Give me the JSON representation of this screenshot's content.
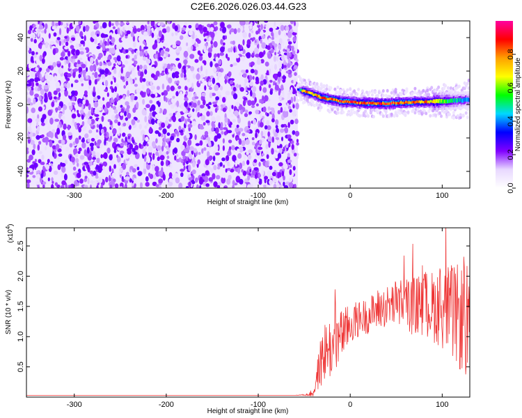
{
  "figure_title": "C2E6.2026.026.03.44.G23",
  "chart_data": [
    {
      "type": "heatmap",
      "title": "C2E6.2026.026.03.44.G23",
      "xlabel": "Height of straight line (km)",
      "ylabel": "Frequency (Hz)",
      "xlim": [
        -352,
        130
      ],
      "ylim": [
        -50,
        50
      ],
      "x_ticks": [
        "-300",
        "-200",
        "-100",
        "0",
        "100"
      ],
      "y_ticks": [
        "-40",
        "-20",
        "0",
        "20",
        "40"
      ],
      "noise_region_x": [
        -352,
        -57
      ],
      "signal_track": {
        "x": [
          -57,
          -50,
          -40,
          -30,
          -20,
          -10,
          0,
          10,
          20,
          30,
          40,
          50,
          60,
          70,
          80,
          90,
          100,
          110,
          120,
          130
        ],
        "frequency": [
          9,
          8,
          6,
          4,
          3,
          2,
          1.5,
          1,
          0.8,
          0.6,
          0.6,
          1,
          1.2,
          1.5,
          1.5,
          1.8,
          2,
          2.2,
          2.5,
          3
        ],
        "peak_amplitude": [
          0.3,
          0.85,
          0.7,
          0.9,
          0.85,
          0.9,
          0.9,
          0.85,
          0.9,
          0.88,
          0.9,
          0.9,
          0.88,
          0.85,
          0.8,
          0.7,
          0.6,
          0.5,
          0.45,
          0.4
        ]
      },
      "colorbar": {
        "label": "Normalized spectral amplitude",
        "range": [
          0,
          1
        ],
        "ticks": [
          "0.0",
          "0.2",
          "0.4",
          "0.6",
          "0.8"
        ],
        "colors": [
          "#ffffff",
          "#e8d8ff",
          "#8000ff",
          "#0000ff",
          "#00d8ff",
          "#00ff00",
          "#ffff00",
          "#ffa000",
          "#ff0000",
          "#ff00a0"
        ]
      }
    },
    {
      "type": "line",
      "xlabel": "Height of straight line (km)",
      "ylabel": "SNR (10 * v/v)",
      "y_multiplier": "(x10",
      "y_multiplier_exp": "4",
      "y_multiplier_close": ")",
      "xlim": [
        -352,
        130
      ],
      "ylim": [
        0,
        2.8
      ],
      "x_ticks": [
        "-300",
        "-200",
        "-100",
        "0",
        "100"
      ],
      "y_ticks": [
        "0.5",
        "1.0",
        "1.5",
        "2.0",
        "2.5"
      ],
      "color": "#ee3333",
      "series": [
        {
          "x": [
            -352,
            -300,
            -250,
            -200,
            -150,
            -100,
            -60,
            -45,
            -40,
            -35,
            -30,
            -25,
            -20,
            -15,
            -10,
            -5,
            0,
            10,
            20,
            30,
            40,
            50,
            60,
            70,
            80,
            90,
            100,
            110,
            120,
            130
          ],
          "values": [
            0.03,
            0.03,
            0.03,
            0.03,
            0.03,
            0.03,
            0.03,
            0.04,
            0.08,
            0.4,
            0.7,
            0.8,
            0.8,
            0.95,
            1.0,
            1.1,
            1.2,
            1.3,
            1.35,
            1.45,
            1.5,
            1.55,
            1.55,
            1.5,
            1.55,
            1.5,
            1.5,
            1.4,
            1.3,
            1.2
          ],
          "spread": [
            0,
            0,
            0,
            0,
            0,
            0,
            0,
            0.02,
            0.1,
            0.3,
            0.5,
            0.55,
            0.5,
            0.5,
            0.45,
            0.4,
            0.35,
            0.3,
            0.3,
            0.35,
            0.35,
            0.4,
            0.45,
            0.5,
            0.55,
            0.6,
            0.7,
            0.8,
            0.9,
            1.0
          ]
        }
      ]
    }
  ]
}
